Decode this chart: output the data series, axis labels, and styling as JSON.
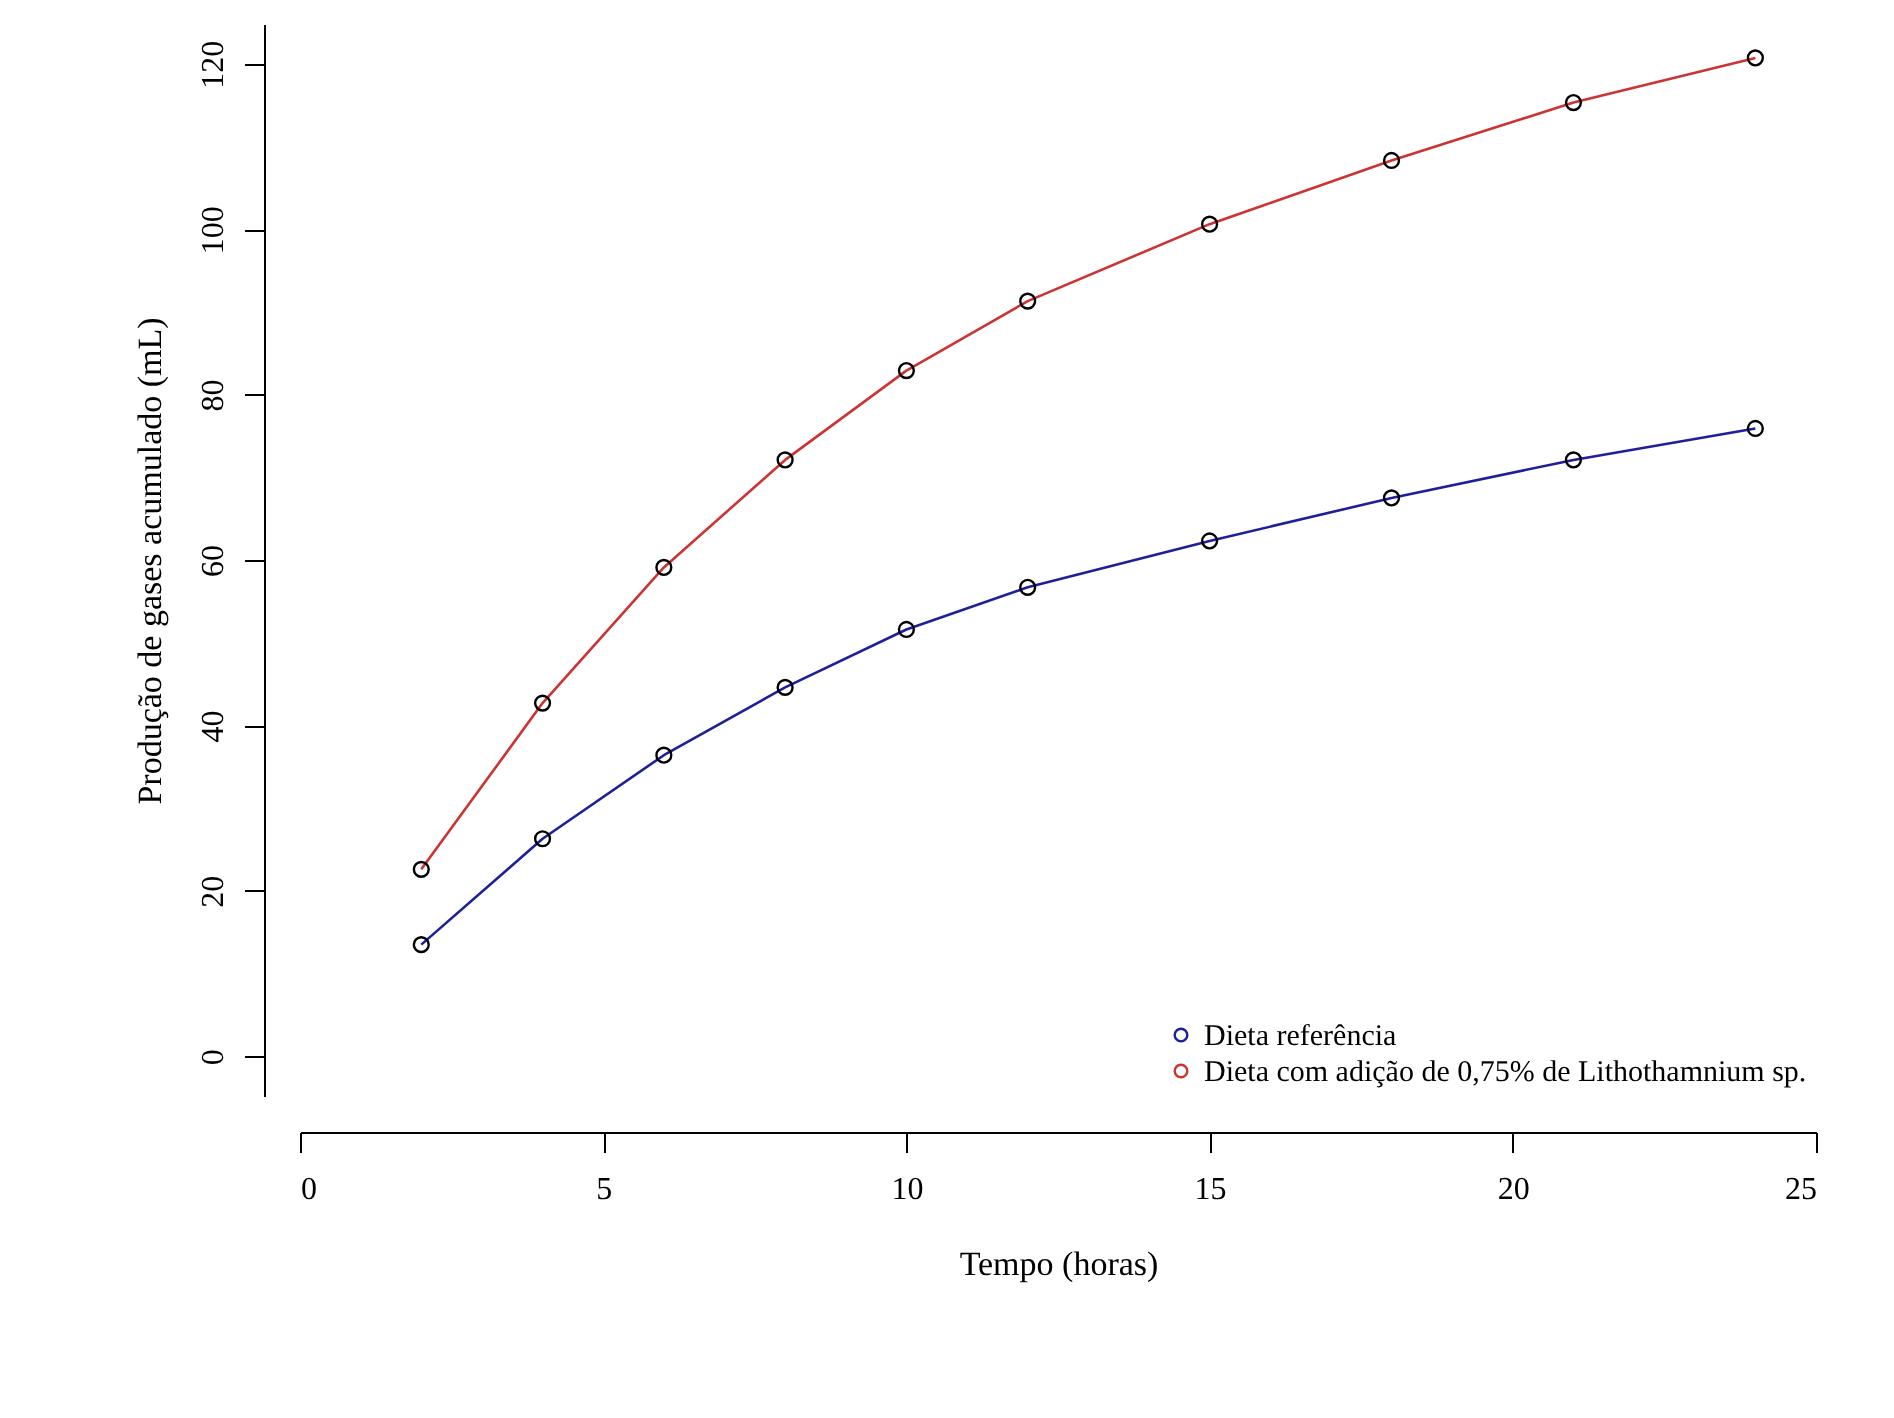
{
  "chart_data": {
    "type": "line",
    "xlabel": "Tempo (horas)",
    "ylabel": "Produção de gases acumulado (mL)",
    "x": [
      2,
      4,
      6,
      8,
      10,
      12,
      15,
      18,
      21,
      24
    ],
    "series": [
      {
        "name": "Dieta referência",
        "color": "#1f1f9a",
        "values": [
          13.5,
          26.3,
          36.4,
          44.6,
          51.6,
          56.7,
          62.3,
          67.5,
          72.1,
          75.9
        ]
      },
      {
        "name": "Dieta com adição de 0,75% de Lithothamnium sp.",
        "color": "#cc3333",
        "values": [
          22.6,
          42.7,
          59.1,
          72.1,
          82.9,
          91.3,
          100.6,
          108.3,
          115.3,
          120.7
        ]
      }
    ],
    "xlim": [
      0,
      25
    ],
    "xticks": [
      0,
      5,
      10,
      15,
      20,
      25
    ],
    "ylim": [
      -4.8,
      124.8
    ],
    "yticks": [
      0,
      20,
      40,
      60,
      80,
      100,
      120
    ],
    "marker": "circle",
    "line_style": "solid",
    "grid": false,
    "legend": "bottom right"
  }
}
